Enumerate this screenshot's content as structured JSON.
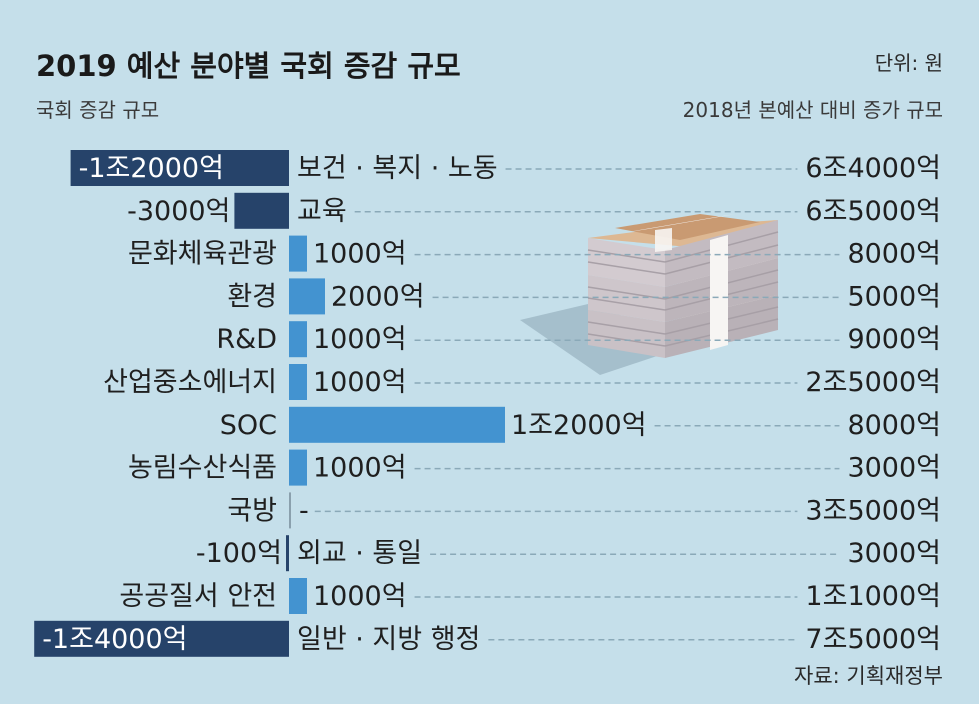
{
  "chart_data": {
    "type": "bar",
    "title": "2019 예산 분야별 국회 증감 규모",
    "unit_label": "단위: 원",
    "left_header": "국회 증감 규모",
    "right_header": "2018년 본예산 대비 증가 규모",
    "source": "자료: 기획재정부",
    "categories": [
      "보건·복지·노동",
      "교육",
      "문화체육관광",
      "환경",
      "R&D",
      "산업중소에너지",
      "SOC",
      "농림수산식품",
      "국방",
      "외교·통일",
      "공공질서 안전",
      "일반·지방 행정"
    ],
    "category_labels": [
      "보건 · 복지 · 노동",
      "교육",
      "문화체육관광",
      "환경",
      "R&D",
      "산업중소에너지",
      "SOC",
      "농림수산식품",
      "국방",
      "외교 · 통일",
      "공공질서 안전",
      "일반 · 지방 행정"
    ],
    "series": [
      {
        "values": [
          -12000,
          -3000,
          1000,
          2000,
          1000,
          1000,
          12000,
          1000,
          0,
          -100,
          1000,
          -14000
        ],
        "value_labels": [
          "-1조2000억",
          "-3000억",
          "1000억",
          "2000억",
          "1000억",
          "1000억",
          "1조2000억",
          "1000억",
          "-",
          "-100억",
          "1000억",
          "-1조4000억"
        ]
      }
    ],
    "value_unit": "억원",
    "increase_labels": [
      "6조4000억",
      "6조5000억",
      "8000억",
      "5000억",
      "9000억",
      "2조5000억",
      "8000억",
      "3000억",
      "3조5000억",
      "3000억",
      "1조1000억",
      "7조5000억"
    ],
    "colors": {
      "positive": "#4393d0",
      "negative": "#26436a",
      "background": "#c5dfea",
      "leader": "#8aa9b8"
    },
    "icon": "money-stack-icon"
  }
}
